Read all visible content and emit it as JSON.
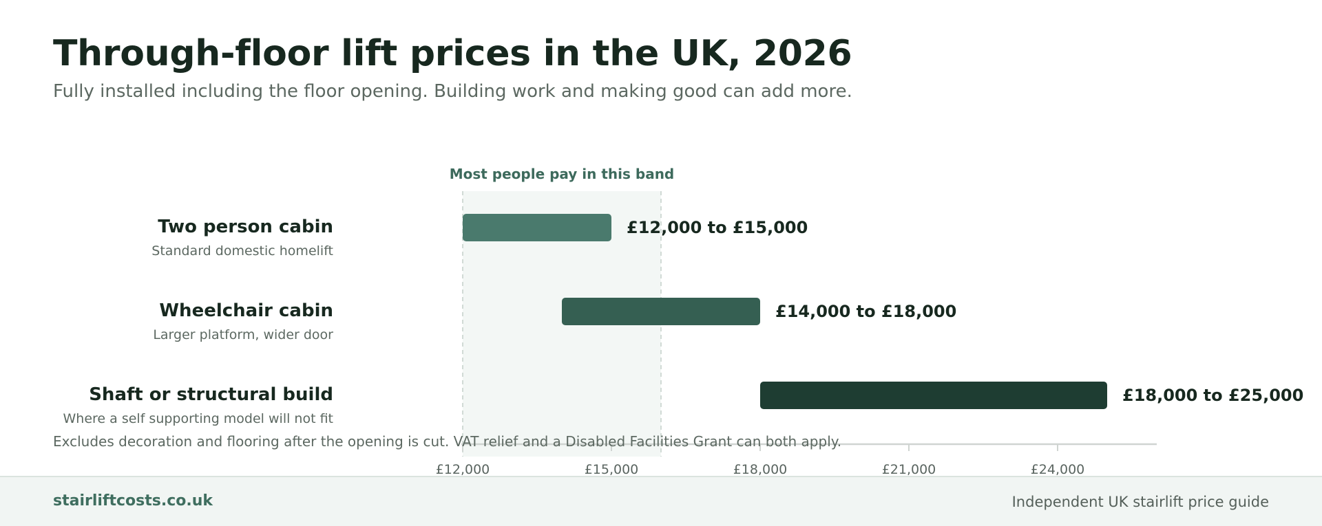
{
  "header": {
    "title": "Through-floor lift prices in the UK, 2026",
    "subtitle": "Fully installed including the floor opening. Building work and making good can add more."
  },
  "chart_data": {
    "type": "bar",
    "orientation": "horizontal-range",
    "categories": [
      "Two person cabin",
      "Wheelchair cabin",
      "Shaft or structural build"
    ],
    "category_notes": [
      "Standard domestic homelift",
      "Larger platform, wider door",
      "Where a self supporting model will not fit"
    ],
    "ranges": [
      [
        12000,
        15000
      ],
      [
        14000,
        18000
      ],
      [
        18000,
        25000
      ]
    ],
    "range_labels": [
      "£12,000 to £15,000",
      "£14,000 to £18,000",
      "£18,000 to £25,000"
    ],
    "bar_colors": [
      "#4a7a6d",
      "#355f52",
      "#1e3d32"
    ],
    "xlim": [
      12000,
      27000
    ],
    "x_ticks": [
      12000,
      15000,
      18000,
      21000,
      24000
    ],
    "x_tick_labels": [
      "£12,000",
      "£15,000",
      "£18,000",
      "£21,000",
      "£24,000"
    ],
    "highlight_band": {
      "range": [
        12000,
        16000
      ],
      "label": "Most people pay in this band"
    },
    "note": "Excludes decoration and flooring after the opening is cut. VAT relief and a Disabled Facilities Grant can both apply.",
    "grid": false,
    "legend": "none"
  },
  "footer": {
    "brand": "stairliftcosts.co.uk",
    "tagline": "Independent UK stairlift price guide"
  }
}
